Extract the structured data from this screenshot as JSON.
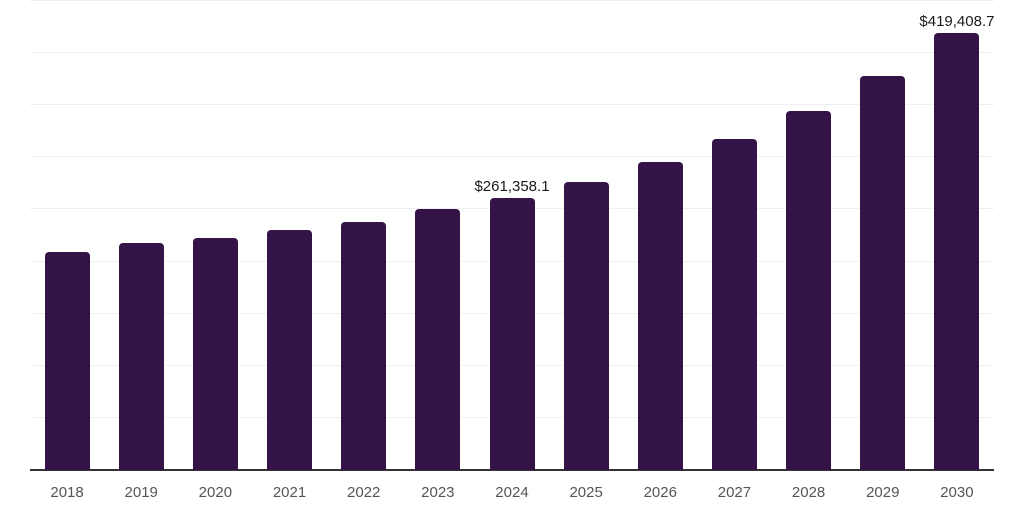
{
  "chart_data": {
    "type": "bar",
    "categories": [
      "2018",
      "2019",
      "2020",
      "2021",
      "2022",
      "2023",
      "2024",
      "2025",
      "2026",
      "2027",
      "2028",
      "2029",
      "2030"
    ],
    "values": [
      208900,
      217500,
      222300,
      229900,
      237500,
      250000,
      261358.1,
      276700,
      295700,
      317700,
      344400,
      377800,
      419408.7
    ],
    "data_labels": [
      {
        "category": "2024",
        "text": "$261,358.1"
      },
      {
        "category": "2030",
        "text": "$419,408.7"
      }
    ],
    "title": "",
    "xlabel": "",
    "ylabel": "",
    "ylim": [
      0,
      450000
    ],
    "gridline_step": 50000,
    "grid": "horizontal-only",
    "legend": "none",
    "y_axis_ticks_visible": false,
    "colors": {
      "bar": "#341347",
      "axis_line": "#333333",
      "gridline": "#efefef",
      "tick_label": "#555555",
      "data_label": "#1a1a1a",
      "background": "#ffffff"
    }
  }
}
